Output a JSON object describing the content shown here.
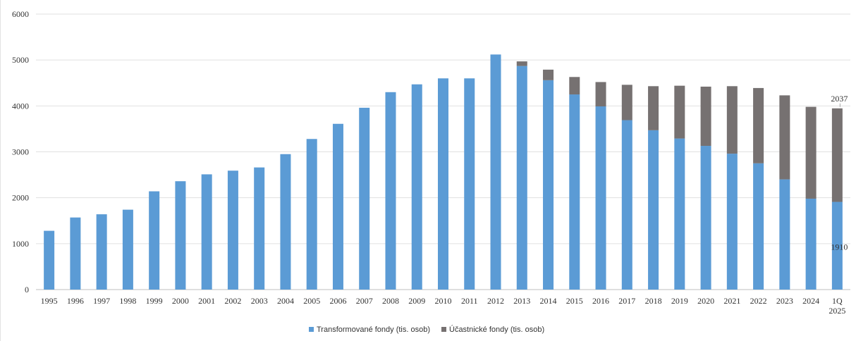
{
  "chart_data": {
    "type": "bar",
    "stacked": true,
    "categories": [
      "1995",
      "1996",
      "1997",
      "1998",
      "1999",
      "2000",
      "2001",
      "2002",
      "2003",
      "2004",
      "2005",
      "2006",
      "2007",
      "2008",
      "2009",
      "2010",
      "2011",
      "2012",
      "2013",
      "2014",
      "2015",
      "2016",
      "2017",
      "2018",
      "2019",
      "2020",
      "2021",
      "2022",
      "2023",
      "2024",
      "1Q 2025"
    ],
    "series": [
      {
        "name": "Transformované fondy (tis. osob)",
        "color": "#5b9bd5",
        "values": [
          1280,
          1570,
          1640,
          1740,
          2140,
          2360,
          2510,
          2590,
          2660,
          2950,
          3280,
          3610,
          3960,
          4300,
          4470,
          4600,
          4600,
          5120,
          4870,
          4560,
          4250,
          3990,
          3690,
          3470,
          3290,
          3130,
          2960,
          2750,
          2400,
          1980,
          1910
        ]
      },
      {
        "name": "Účastnické fondy (tis. osob)",
        "color": "#767171",
        "values": [
          0,
          0,
          0,
          0,
          0,
          0,
          0,
          0,
          0,
          0,
          0,
          0,
          0,
          0,
          0,
          0,
          0,
          0,
          100,
          230,
          380,
          530,
          770,
          960,
          1150,
          1290,
          1470,
          1640,
          1830,
          2000,
          2037
        ]
      }
    ],
    "title": "",
    "xlabel": "",
    "ylabel": "",
    "ylim": [
      0,
      6000
    ],
    "yticks": [
      "0",
      "1000",
      "2000",
      "3000",
      "4000",
      "5000",
      "6000"
    ],
    "grid": true,
    "legend_position": "bottom",
    "data_labels": [
      {
        "category": "1Q 2025",
        "series": "Účastnické fondy (tis. osob)",
        "text": "2037"
      },
      {
        "category": "1Q 2025",
        "series": "Transformované fondy (tis. osob)",
        "text": "1910"
      }
    ]
  }
}
